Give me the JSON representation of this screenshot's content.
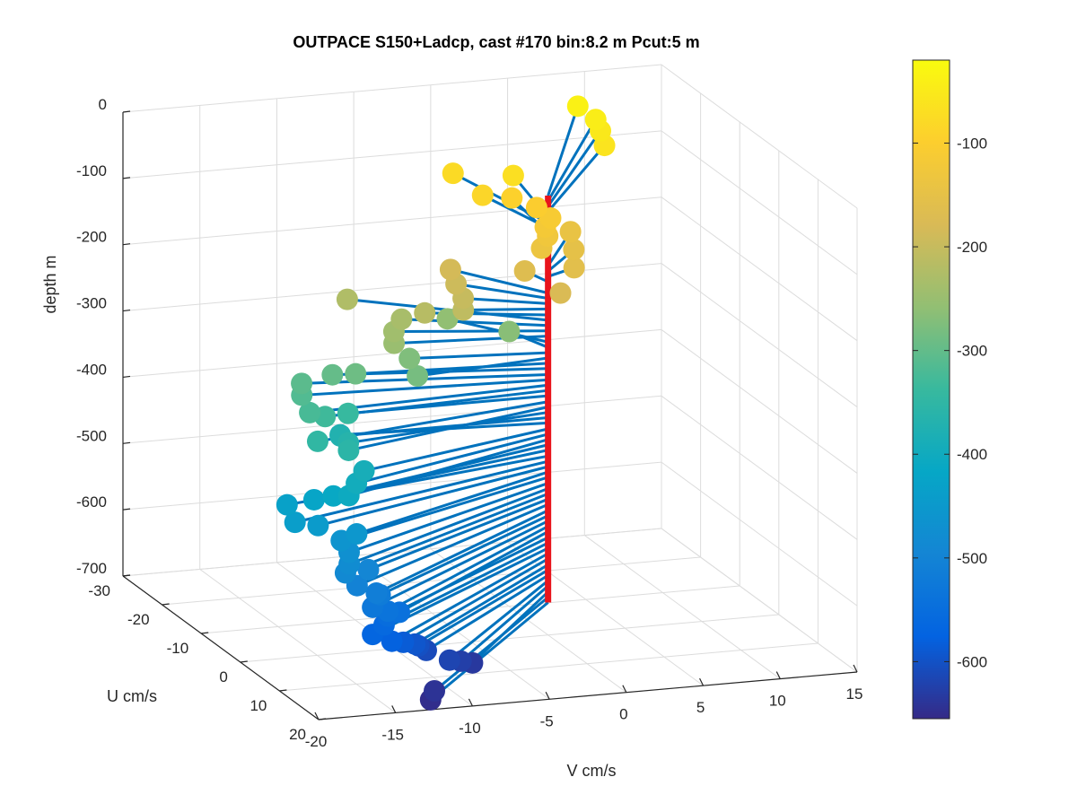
{
  "chart_data": {
    "type": "scatter",
    "projection": "3d",
    "title": "OUTPACE S150+Ladcp, cast #170 bin:8.2 m  Pcut:5 m",
    "xlabel": "V cm/s",
    "ylabel": "U cm/s",
    "zlabel": "depth m",
    "xlim": [
      -20,
      15
    ],
    "ylim": [
      -30,
      20
    ],
    "zlim": [
      -700,
      0
    ],
    "x_ticks": [
      "-20",
      "-15",
      "-10",
      "-5",
      "0",
      "5",
      "10",
      "15"
    ],
    "y_ticks": [
      "-30",
      "-20",
      "-10",
      "0",
      "10",
      "20"
    ],
    "z_ticks": [
      "0",
      "-100",
      "-200",
      "-300",
      "-400",
      "-500",
      "-600",
      "-700"
    ],
    "grid": true,
    "colorbar": {
      "colormap": "parula",
      "range": [
        -655,
        -20
      ],
      "ticks": [
        "-100",
        "-200",
        "-300",
        "-400",
        "-500",
        "-600"
      ]
    },
    "profile_color": "#e8141c",
    "vector_color": "#0072bd",
    "points": [
      {
        "depth": -37,
        "v": 8.8,
        "u": -27
      },
      {
        "depth": -45,
        "v": 9.2,
        "u": -24
      },
      {
        "depth": -53,
        "v": 9.0,
        "u": -22
      },
      {
        "depth": -61,
        "v": 8.5,
        "u": -19
      },
      {
        "depth": -70,
        "v": 1.3,
        "u": -14
      },
      {
        "depth": -78,
        "v": -1.6,
        "u": -18
      },
      {
        "depth": -86,
        "v": -1.2,
        "u": -12
      },
      {
        "depth": -94,
        "v": 0.7,
        "u": -12
      },
      {
        "depth": -102,
        "v": 1.8,
        "u": -10
      },
      {
        "depth": -110,
        "v": 2.2,
        "u": -8
      },
      {
        "depth": -118,
        "v": 1.6,
        "u": -7
      },
      {
        "depth": -127,
        "v": 1.5,
        "u": -6
      },
      {
        "depth": -135,
        "v": 0.6,
        "u": -4
      },
      {
        "depth": -143,
        "v": 4.0,
        "u": -10
      },
      {
        "depth": -151,
        "v": 3.2,
        "u": -6
      },
      {
        "depth": -159,
        "v": 2.2,
        "u": -2
      },
      {
        "depth": -167,
        "v": -0.5,
        "u": -4
      },
      {
        "depth": -176,
        "v": 0.3,
        "u": 2
      },
      {
        "depth": -184,
        "v": -3.8,
        "u": -10
      },
      {
        "depth": -192,
        "v": -4.2,
        "u": -7
      },
      {
        "depth": -200,
        "v": -4.5,
        "u": -4
      },
      {
        "depth": -208,
        "v": -5.0,
        "u": -2
      },
      {
        "depth": -217,
        "v": -7.0,
        "u": -4
      },
      {
        "depth": -225,
        "v": -10.0,
        "u": -12
      },
      {
        "depth": -233,
        "v": -8.0,
        "u": -6
      },
      {
        "depth": -241,
        "v": -9.0,
        "u": -4
      },
      {
        "depth": -249,
        "v": -9.5,
        "u": -2
      },
      {
        "depth": -258,
        "v": -4.0,
        "u": -10
      },
      {
        "depth": -266,
        "v": -1.0,
        "u": -6
      },
      {
        "depth": -274,
        "v": -8.5,
        "u": -2
      },
      {
        "depth": -282,
        "v": -9.0,
        "u": 2
      },
      {
        "depth": -290,
        "v": -12.0,
        "u": -2
      },
      {
        "depth": -298,
        "v": -13.0,
        "u": -4
      },
      {
        "depth": -307,
        "v": -15.0,
        "u": -4
      },
      {
        "depth": -315,
        "v": -15.5,
        "u": -2
      },
      {
        "depth": -323,
        "v": -16.0,
        "u": 2
      },
      {
        "depth": -331,
        "v": -15.0,
        "u": 2
      },
      {
        "depth": -339,
        "v": -13.0,
        "u": 0
      },
      {
        "depth": -348,
        "v": -16.5,
        "u": 6
      },
      {
        "depth": -356,
        "v": -15.0,
        "u": 8
      },
      {
        "depth": -364,
        "v": -14.0,
        "u": 4
      },
      {
        "depth": -372,
        "v": -13.5,
        "u": 0
      },
      {
        "depth": -380,
        "v": -13.0,
        "u": -2
      },
      {
        "depth": -389,
        "v": -14.0,
        "u": 8
      },
      {
        "depth": -397,
        "v": -15.0,
        "u": 10
      },
      {
        "depth": -405,
        "v": -16.0,
        "u": 12
      },
      {
        "depth": -413,
        "v": -16.5,
        "u": 10
      },
      {
        "depth": -421,
        "v": -17.5,
        "u": 9
      },
      {
        "depth": -430,
        "v": -19.0,
        "u": 8
      },
      {
        "depth": -438,
        "v": -19.5,
        "u": 12
      },
      {
        "depth": -446,
        "v": -18.0,
        "u": 12
      },
      {
        "depth": -454,
        "v": -16.0,
        "u": 14
      },
      {
        "depth": -462,
        "v": -17.0,
        "u": 14
      },
      {
        "depth": -471,
        "v": -17.0,
        "u": 16
      },
      {
        "depth": -479,
        "v": -17.5,
        "u": 18
      },
      {
        "depth": -487,
        "v": -18.0,
        "u": 19
      },
      {
        "depth": -495,
        "v": -16.0,
        "u": 17
      },
      {
        "depth": -503,
        "v": -17.5,
        "u": 20
      },
      {
        "depth": -512,
        "v": -16.5,
        "u": 21
      },
      {
        "depth": -520,
        "v": -16.0,
        "u": 20
      },
      {
        "depth": -528,
        "v": -17.0,
        "u": 22
      },
      {
        "depth": -536,
        "v": -16.0,
        "u": 22
      },
      {
        "depth": -544,
        "v": -15.0,
        "u": 21
      },
      {
        "depth": -553,
        "v": -15.5,
        "u": 20
      },
      {
        "depth": -561,
        "v": -16.0,
        "u": 21
      },
      {
        "depth": -569,
        "v": -17.0,
        "u": 22
      },
      {
        "depth": -577,
        "v": -16.0,
        "u": 23
      },
      {
        "depth": -585,
        "v": -15.0,
        "u": 22
      },
      {
        "depth": -594,
        "v": -14.0,
        "u": 21
      },
      {
        "depth": -602,
        "v": -13.5,
        "u": 20
      },
      {
        "depth": -610,
        "v": -13.0,
        "u": 20
      },
      {
        "depth": -618,
        "v": -12.0,
        "u": 22
      },
      {
        "depth": -626,
        "v": -11.0,
        "u": 21
      },
      {
        "depth": -635,
        "v": -10.0,
        "u": 20
      },
      {
        "depth": -643,
        "v": -14.0,
        "u": 26
      },
      {
        "depth": -651,
        "v": -14.5,
        "u": 27
      }
    ]
  }
}
